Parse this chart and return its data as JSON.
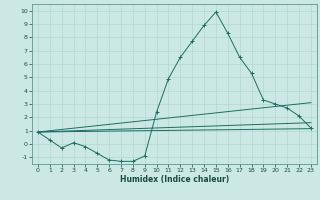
{
  "xlabel": "Humidex (Indice chaleur)",
  "ylabel": "",
  "bg_color": "#cce8e4",
  "grid_major_color": "#aad4cf",
  "grid_minor_color": "#bcdeda",
  "line_color": "#1a6e63",
  "xlim": [
    -0.5,
    23.5
  ],
  "ylim": [
    -1.5,
    10.5
  ],
  "xticks": [
    0,
    1,
    2,
    3,
    4,
    5,
    6,
    7,
    8,
    9,
    10,
    11,
    12,
    13,
    14,
    15,
    16,
    17,
    18,
    19,
    20,
    21,
    22,
    23
  ],
  "yticks": [
    -1,
    0,
    1,
    2,
    3,
    4,
    5,
    6,
    7,
    8,
    9,
    10
  ],
  "line1_x": [
    0,
    1,
    2,
    3,
    4,
    5,
    6,
    7,
    8,
    9,
    10,
    11,
    12,
    13,
    14,
    15,
    16,
    17,
    18,
    19,
    20,
    21,
    22,
    23
  ],
  "line1_y": [
    0.9,
    0.3,
    -0.3,
    0.1,
    -0.2,
    -0.7,
    -1.2,
    -1.3,
    -1.3,
    -0.9,
    2.4,
    4.9,
    6.5,
    7.7,
    8.9,
    9.9,
    8.3,
    6.5,
    5.3,
    3.3,
    3.0,
    2.7,
    2.1,
    1.2
  ],
  "line2_x": [
    0,
    23
  ],
  "line2_y": [
    0.9,
    3.1
  ],
  "line3_x": [
    0,
    23
  ],
  "line3_y": [
    0.9,
    1.15
  ],
  "line4_x": [
    0,
    23
  ],
  "line4_y": [
    0.9,
    1.6
  ],
  "marker": "+"
}
